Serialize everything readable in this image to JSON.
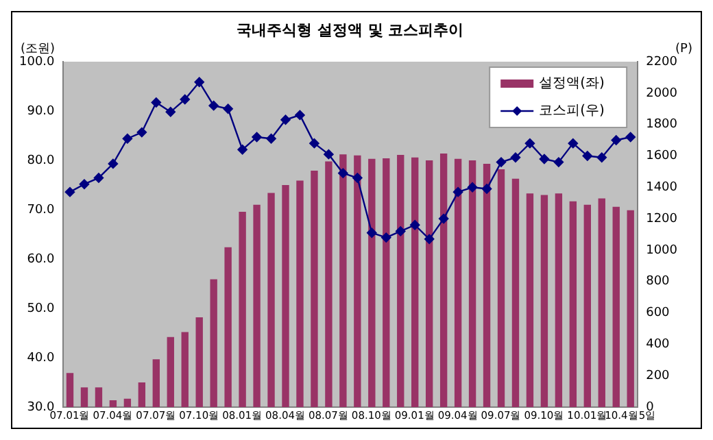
{
  "chart_data": {
    "type": "bar",
    "title": "국내주식형 설정액 및 코스피추이",
    "ylabel": "(조원)",
    "y2label": "(P)",
    "categories": [
      "07.01월",
      null,
      null,
      "07.04월",
      null,
      null,
      "07.07월",
      null,
      null,
      "07.10월",
      null,
      null,
      "08.01월",
      null,
      null,
      "08.04월",
      null,
      null,
      "08.07월",
      null,
      null,
      "08.10월",
      null,
      null,
      "09.01월",
      null,
      null,
      "09.04월",
      null,
      null,
      "09.07월",
      null,
      null,
      "09.10월",
      null,
      null,
      "10.01월",
      null,
      null,
      "10.4월5일"
    ],
    "series": [
      {
        "name": "설정액(좌)",
        "color": "#993366",
        "values": [
          36.9,
          34,
          34,
          31.4,
          31.7,
          35,
          39.7,
          44.2,
          45.2,
          48.2,
          55.9,
          62.4,
          69.6,
          71,
          73.4,
          75,
          75.9,
          77.9,
          79.8,
          81.2,
          81,
          80.3,
          80.4,
          81.1,
          80.6,
          80,
          81.4,
          80.3,
          80,
          79.3,
          78.2,
          76.3,
          73.3,
          73,
          73.3,
          71.7,
          71,
          72.3,
          70.6,
          69.9
        ]
      },
      {
        "name": "코스피(우)",
        "type": "line",
        "axis": "y2",
        "color": "#000080",
        "marker": "diamond",
        "values": [
          1370,
          1420,
          1460,
          1550,
          1710,
          1750,
          1940,
          1880,
          1960,
          2070,
          1920,
          1900,
          1640,
          1720,
          1710,
          1830,
          1860,
          1680,
          1610,
          1490,
          1460,
          1110,
          1080,
          1120,
          1160,
          1070,
          1200,
          1370,
          1400,
          1390,
          1560,
          1590,
          1680,
          1580,
          1560,
          1680,
          1600,
          1590,
          1700,
          1720
        ]
      }
    ],
    "ylim": [
      30,
      100
    ],
    "yticks": [
      {
        "value": 30,
        "label": "30.0"
      },
      {
        "value": 40,
        "label": "40.0"
      },
      {
        "value": 50,
        "label": "50.0"
      },
      {
        "value": 60,
        "label": "60.0"
      },
      {
        "value": 70,
        "label": "70.0"
      },
      {
        "value": 80,
        "label": "80.0"
      },
      {
        "value": 90,
        "label": "90.0"
      },
      {
        "value": 100,
        "label": "100.0"
      }
    ],
    "y2lim": [
      0,
      2200
    ],
    "y2ticks": [
      0,
      200,
      400,
      600,
      800,
      1000,
      1200,
      1400,
      1600,
      1800,
      2000,
      2200
    ],
    "legend": "top right",
    "grid": false
  }
}
